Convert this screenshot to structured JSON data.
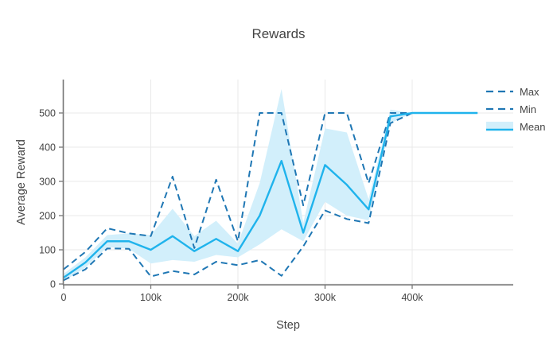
{
  "title": "Rewards",
  "x_axis": {
    "title": "Step",
    "tick_labels": [
      "0",
      "100k",
      "200k",
      "300k",
      "400k"
    ]
  },
  "y_axis": {
    "title": "Average Reward",
    "tick_labels": [
      "0",
      "100",
      "200",
      "300",
      "400",
      "500"
    ]
  },
  "legend": {
    "items": [
      {
        "label": "Max",
        "style": "dashed"
      },
      {
        "label": "Min",
        "style": "dashed"
      },
      {
        "label": "Mean",
        "style": "solid-with-band"
      }
    ]
  },
  "colors": {
    "dashed_line": "#1f77b4",
    "mean_line": "#1fb3ec",
    "band_fill": "#d2effb",
    "grid": "#e9e9e9",
    "axis_line": "#777777",
    "tick": "#777777",
    "text": "#444444"
  },
  "chart_data": {
    "type": "line",
    "x_unit": "steps",
    "x_steps_k": [
      0,
      25,
      50,
      75,
      100,
      125,
      150,
      175,
      200,
      225,
      250,
      275,
      300,
      325,
      350,
      375,
      400,
      425,
      450,
      475
    ],
    "series": [
      {
        "name": "Max",
        "dashed": true,
        "values": [
          43,
          94,
          163,
          148,
          140,
          314,
          105,
          305,
          125,
          500,
          500,
          230,
          500,
          500,
          295,
          500,
          500,
          500,
          500,
          500
        ]
      },
      {
        "name": "Min",
        "dashed": true,
        "values": [
          11,
          43,
          104,
          103,
          22,
          38,
          28,
          65,
          55,
          70,
          24,
          110,
          215,
          190,
          178,
          470,
          500,
          500,
          500,
          500
        ]
      },
      {
        "name": "Mean",
        "dashed": false,
        "values": [
          19,
          63,
          125,
          125,
          100,
          140,
          96,
          132,
          96,
          200,
          360,
          150,
          348,
          290,
          218,
          490,
          500,
          500,
          500,
          500
        ]
      }
    ],
    "band": {
      "attached_to": "Mean",
      "upper": [
        30,
        78,
        143,
        148,
        143,
        220,
        140,
        185,
        118,
        295,
        570,
        178,
        455,
        443,
        248,
        510,
        500,
        500,
        500,
        500
      ],
      "lower": [
        8,
        48,
        108,
        103,
        60,
        70,
        65,
        85,
        78,
        116,
        160,
        125,
        240,
        200,
        186,
        470,
        500,
        500,
        500,
        500
      ]
    },
    "xlim_k": [
      0,
      516
    ],
    "ylim": [
      -4,
      598
    ],
    "x_gridline_steps_k": [
      0,
      100,
      200,
      300,
      400
    ],
    "y_gridline_values": [
      0,
      100,
      200,
      300,
      400,
      500
    ],
    "grid": true,
    "legend_position": "right"
  }
}
